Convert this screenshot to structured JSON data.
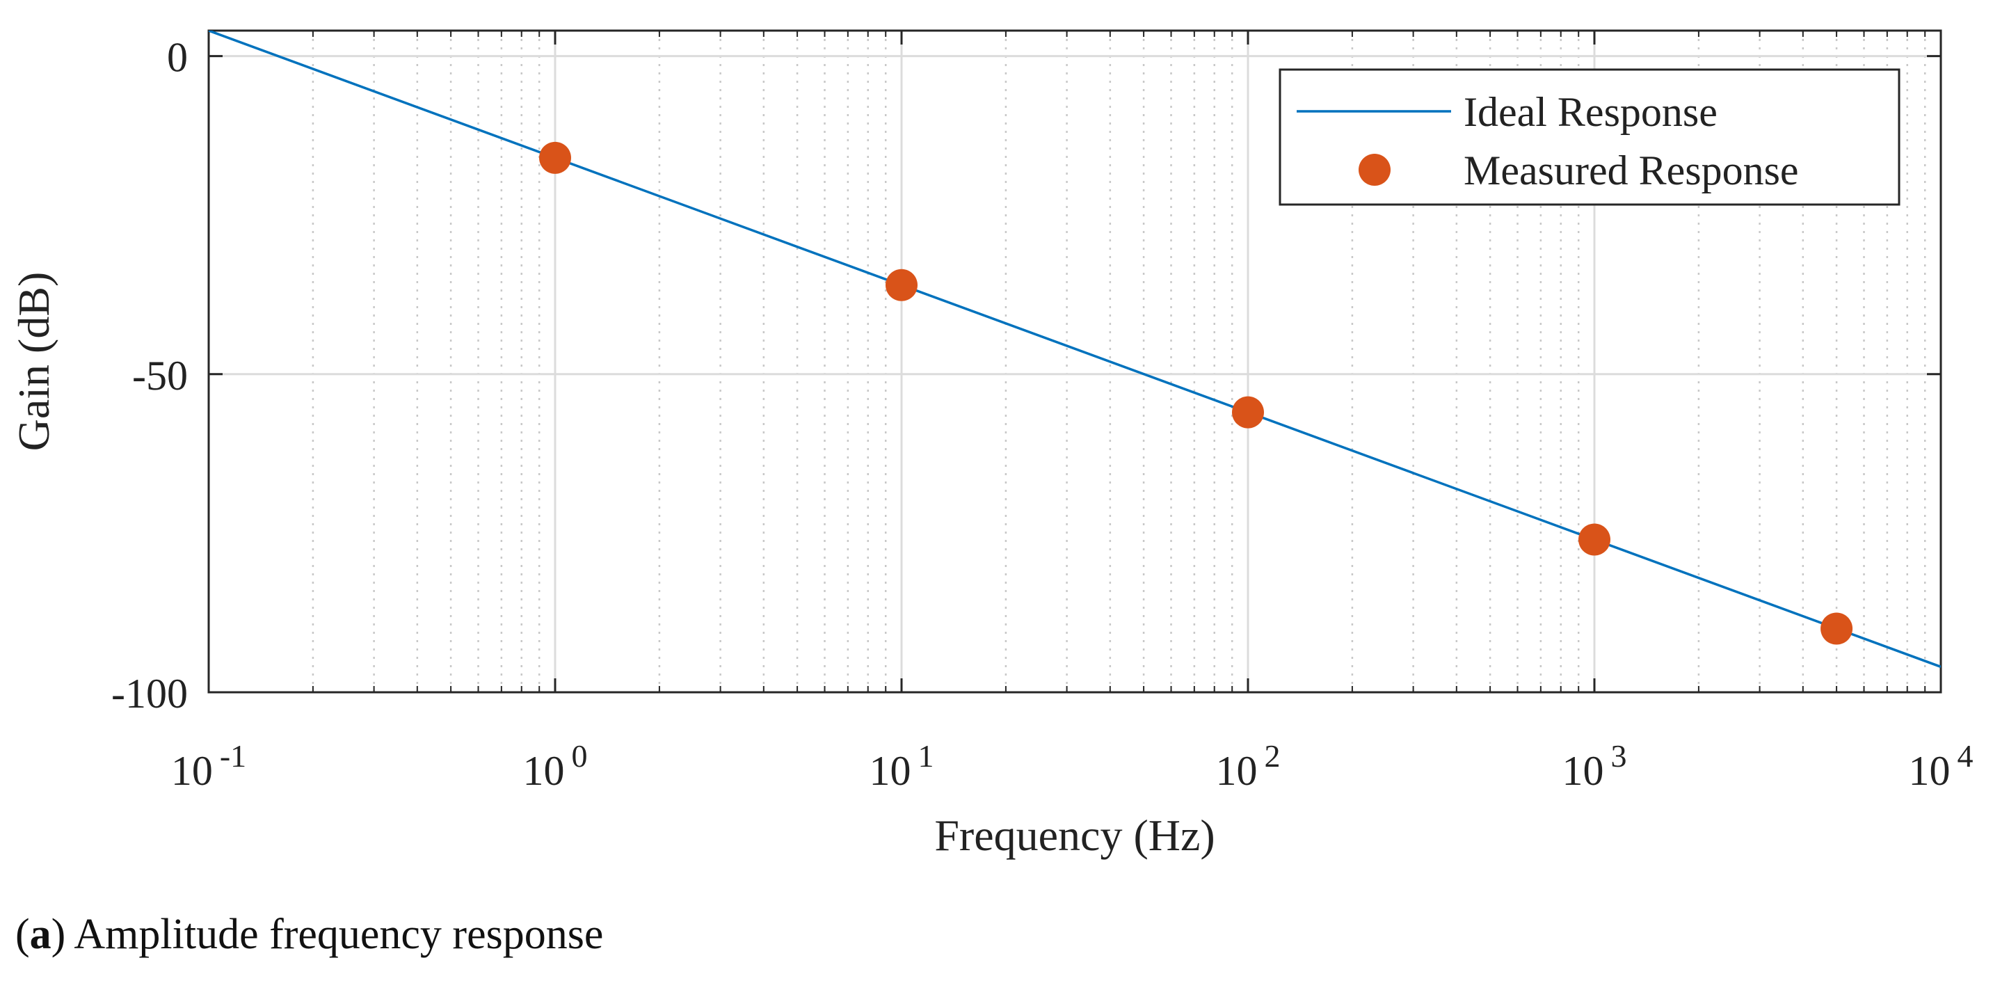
{
  "chart_data": {
    "type": "line",
    "x_scale": "log",
    "title": "",
    "xlabel": "Frequency (Hz)",
    "ylabel": "Gain (dB)",
    "xlim": [
      0.1,
      10000
    ],
    "ylim": [
      -100,
      4
    ],
    "x_ticks": [
      {
        "base": "10",
        "exp": "-1"
      },
      {
        "base": "10",
        "exp": "0"
      },
      {
        "base": "10",
        "exp": "1"
      },
      {
        "base": "10",
        "exp": "2"
      },
      {
        "base": "10",
        "exp": "3"
      },
      {
        "base": "10",
        "exp": "4"
      }
    ],
    "x_tick_values": [
      0.1,
      1,
      10,
      100,
      1000,
      10000
    ],
    "y_ticks": [
      {
        "value": 0,
        "label": "0"
      },
      {
        "value": -50,
        "label": "-50"
      },
      {
        "value": -100,
        "label": "-100"
      }
    ],
    "grid": true,
    "legend_position": "top-right",
    "series": [
      {
        "name": "Ideal Response",
        "style": "line",
        "color": "#0072BD",
        "x": [
          0.1,
          10000
        ],
        "y": [
          4,
          -96
        ]
      },
      {
        "name": "Measured Response",
        "style": "markers",
        "color": "#D95319",
        "x": [
          1,
          10,
          100,
          1000,
          5000
        ],
        "y": [
          -16,
          -36,
          -56,
          -76,
          -90
        ]
      }
    ]
  },
  "caption": {
    "label": "a",
    "open": "(",
    "close": ")",
    "text": " Amplitude frequency response"
  }
}
